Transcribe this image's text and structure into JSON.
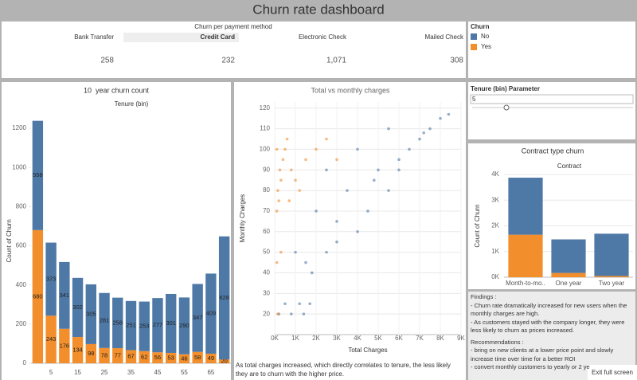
{
  "dashboard_title": "Churn rate dashboard",
  "payment": {
    "title": "Churn per payment method",
    "columns": [
      {
        "name": "Bank Transfer",
        "value": "258"
      },
      {
        "name": "Credit Card",
        "value": "232"
      },
      {
        "name": "Electronic Check",
        "value": "1,071"
      },
      {
        "name": "Mailed Check",
        "value": "308"
      }
    ]
  },
  "parameter": {
    "title": "Tenure (bin) Parameter",
    "value": "5"
  },
  "findings": [
    "Findings :",
    "- Churn rate dramatically increased for new users when the monthly charges are high.",
    "- As customers stayed with the company longer, they were less likely to churn as prices increased.",
    "Recommendations :",
    "-  bring on new clients at a lower price point and slowly increase time over time for a better ROI",
    "- convert monthly customers to yearly or 2 ye"
  ],
  "exit_button": "Exit full screen",
  "chart_data": [
    {
      "type": "bar",
      "title": "10  year churn count",
      "subtitle": "Tenure (bin)",
      "y_label": "Count of Churn",
      "legend_title": "Churn",
      "categories": [
        null,
        "5",
        null,
        "15",
        null,
        "25",
        null,
        "35",
        null,
        "45",
        null,
        "55",
        null,
        "65",
        null
      ],
      "series": [
        {
          "name": "No",
          "color": "#4e79a7",
          "values": [
            558,
            373,
            341,
            302,
            305,
            281,
            258,
            251,
            253,
            277,
            301,
            290,
            347,
            409,
            628
          ]
        },
        {
          "name": "Yes",
          "color": "#f28e2b",
          "values": [
            680,
            243,
            176,
            134,
            98,
            78,
            77,
            67,
            62,
            56,
            53,
            46,
            58,
            49,
            20
          ]
        }
      ],
      "ylim": [
        0,
        1250
      ],
      "yticks": [
        0,
        200,
        400,
        600,
        800,
        1000,
        1200
      ],
      "grid": false,
      "data_labels": true
    },
    {
      "type": "scatter",
      "title": "Total vs monthly charges",
      "x_label": "Total Charges",
      "y_label": "Monthly Charges",
      "annotation": "As total charges increased, which directly correlates to tenure, the less likely they are to churn with the higher price.",
      "series": [
        {
          "name": "No",
          "color": "#4e79a7",
          "x": [
            200,
            800,
            1400,
            500,
            1200,
            1700,
            1500,
            2500,
            3000,
            1000,
            4000,
            2000,
            4500,
            3500,
            5500,
            2500,
            5000,
            6000,
            4000,
            6500,
            7000,
            5500,
            7500,
            8000,
            8400,
            3000,
            6000,
            7200,
            4800,
            1800
          ],
          "values": [
            20,
            20,
            20,
            25,
            25,
            25,
            45,
            50,
            55,
            50,
            60,
            70,
            70,
            80,
            80,
            90,
            90,
            90,
            100,
            100,
            105,
            110,
            110,
            115,
            117,
            65,
            95,
            108,
            85,
            40
          ]
        },
        {
          "name": "Yes",
          "color": "#f28e2b",
          "x": [
            100,
            200,
            150,
            300,
            250,
            400,
            500,
            600,
            800,
            1000,
            1500,
            2000,
            100,
            150,
            300,
            700,
            1200,
            2500,
            3000,
            100
          ],
          "values": [
            70,
            75,
            80,
            85,
            90,
            95,
            100,
            105,
            90,
            85,
            95,
            100,
            45,
            20,
            50,
            75,
            80,
            105,
            95,
            100
          ]
        }
      ],
      "xlim": [
        0,
        9000
      ],
      "xticks": [
        {
          "value": 0,
          "label": "0K"
        },
        {
          "value": 1000,
          "label": "1K"
        },
        {
          "value": 2000,
          "label": "2K"
        },
        {
          "value": 3000,
          "label": "3K"
        },
        {
          "value": 4000,
          "label": "4K"
        },
        {
          "value": 5000,
          "label": "5K"
        },
        {
          "value": 6000,
          "label": "6K"
        },
        {
          "value": 7000,
          "label": "7K"
        },
        {
          "value": 8000,
          "label": "8K"
        },
        {
          "value": 9000,
          "label": "9K"
        }
      ],
      "ylim": [
        10,
        123
      ],
      "yticks": [
        20,
        30,
        40,
        50,
        60,
        70,
        80,
        90,
        100,
        110,
        120
      ],
      "grid": true
    },
    {
      "type": "bar",
      "title": "Contract type churn",
      "subtitle": "Contract",
      "y_label": "Count of Churn",
      "categories": [
        "Month-to-mo..",
        "One year",
        "Two year"
      ],
      "series": [
        {
          "name": "No",
          "color": "#4e79a7",
          "values": [
            2220,
            1307,
            1647
          ]
        },
        {
          "name": "Yes",
          "color": "#f28e2b",
          "values": [
            1655,
            166,
            48
          ]
        }
      ],
      "ylim": [
        0,
        4000
      ],
      "yticks": [
        {
          "value": 0,
          "label": "0K"
        },
        {
          "value": 1000,
          "label": "1K"
        },
        {
          "value": 2000,
          "label": "2K"
        },
        {
          "value": 3000,
          "label": "3K"
        },
        {
          "value": 4000,
          "label": "4K"
        }
      ],
      "grid": true,
      "data_labels": false
    }
  ]
}
